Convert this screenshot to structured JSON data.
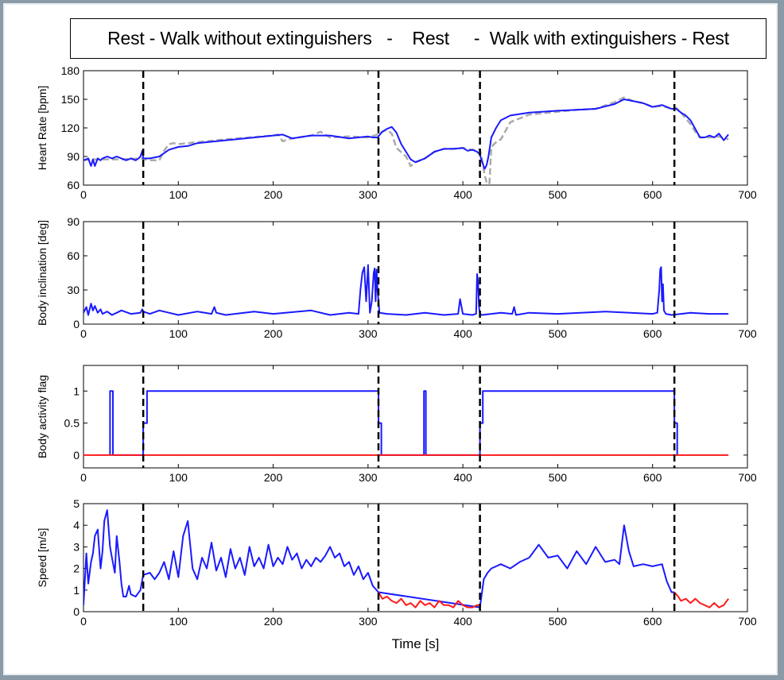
{
  "header": {
    "title": "Rest - Walk without extinguishers   -    Rest     -  Walk with extinguishers - Rest"
  },
  "chart_data": [
    {
      "type": "line",
      "ylabel": "Heart Rate [bpm]",
      "xlim": [
        0,
        700
      ],
      "ylim": [
        60,
        180
      ],
      "xticks": [
        0,
        100,
        200,
        300,
        400,
        500,
        600,
        700
      ],
      "yticks": [
        60,
        90,
        120,
        150,
        180
      ],
      "phase_boundaries": [
        63,
        311,
        418,
        623
      ],
      "series": [
        {
          "color": "#1a1aff",
          "style": "solid",
          "x": [
            0,
            5,
            8,
            10,
            12,
            15,
            18,
            20,
            25,
            30,
            35,
            40,
            45,
            50,
            55,
            58,
            60,
            62,
            63,
            65,
            70,
            80,
            90,
            100,
            110,
            120,
            130,
            150,
            170,
            200,
            210,
            220,
            240,
            260,
            280,
            300,
            305,
            310,
            315,
            320,
            325,
            330,
            335,
            340,
            345,
            350,
            360,
            370,
            380,
            390,
            400,
            405,
            410,
            415,
            418,
            420,
            423,
            425,
            427,
            430,
            435,
            440,
            450,
            470,
            500,
            520,
            540,
            560,
            570,
            580,
            590,
            600,
            610,
            620,
            625,
            630,
            635,
            640,
            645,
            650,
            655,
            660,
            665,
            670,
            675,
            680
          ],
          "values": [
            86,
            88,
            80,
            87,
            80,
            88,
            86,
            88,
            90,
            88,
            90,
            88,
            86,
            88,
            86,
            88,
            90,
            96,
            88,
            88,
            88,
            90,
            97,
            100,
            101,
            104,
            105,
            107,
            109,
            112,
            113,
            109,
            112,
            112,
            109,
            111,
            110,
            110,
            116,
            119,
            121,
            115,
            103,
            95,
            87,
            84,
            88,
            95,
            98,
            98,
            99,
            96,
            97,
            95,
            92,
            85,
            77,
            81,
            90,
            110,
            120,
            128,
            133,
            136,
            138,
            139,
            140,
            145,
            150,
            148,
            146,
            142,
            144,
            140,
            140,
            136,
            133,
            128,
            119,
            110,
            110,
            112,
            110,
            114,
            107,
            113
          ]
        },
        {
          "color": "#aaaaaa",
          "style": "dashed",
          "x": [
            0,
            10,
            20,
            40,
            60,
            70,
            80,
            85,
            90,
            95,
            100,
            120,
            150,
            200,
            205,
            210,
            220,
            240,
            250,
            260,
            280,
            300,
            310,
            315,
            320,
            325,
            330,
            340,
            345,
            350,
            360,
            370,
            380,
            390,
            400,
            410,
            418,
            420,
            423,
            425,
            428,
            430,
            435,
            440,
            450,
            470,
            500,
            520,
            540,
            560,
            570,
            580,
            590,
            600,
            610,
            620,
            625,
            630,
            635,
            640,
            645,
            650,
            655,
            660,
            670,
            680
          ],
          "values": [
            86,
            87,
            87,
            87,
            88,
            86,
            86,
            96,
            103,
            104,
            103,
            105,
            108,
            112,
            113,
            106,
            109,
            112,
            116,
            110,
            111,
            110,
            113,
            116,
            118,
            114,
            99,
            90,
            80,
            84,
            88,
            95,
            98,
            98,
            99,
            97,
            97,
            88,
            70,
            63,
            61,
            100,
            105,
            108,
            126,
            134,
            137,
            139,
            140,
            147,
            152,
            148,
            146,
            142,
            143,
            140,
            141,
            136,
            130,
            124,
            116,
            110,
            110,
            110,
            111,
            108
          ]
        }
      ]
    },
    {
      "type": "line",
      "ylabel": "Body inclination [deg]",
      "xlim": [
        0,
        700
      ],
      "ylim": [
        0,
        90
      ],
      "xticks": [
        0,
        100,
        200,
        300,
        400,
        500,
        600,
        700
      ],
      "yticks": [
        0,
        30,
        60,
        90
      ],
      "phase_boundaries": [
        63,
        311,
        418,
        623
      ],
      "series": [
        {
          "color": "#1a1aff",
          "style": "solid",
          "x": [
            0,
            3,
            5,
            8,
            10,
            12,
            15,
            18,
            20,
            25,
            30,
            35,
            40,
            50,
            60,
            62,
            63,
            70,
            80,
            90,
            100,
            120,
            135,
            138,
            140,
            150,
            180,
            200,
            240,
            260,
            280,
            290,
            292,
            294,
            296,
            298,
            300,
            302,
            304,
            306,
            307,
            308,
            309,
            310,
            312,
            320,
            340,
            360,
            380,
            395,
            397,
            400,
            410,
            414,
            415,
            416,
            417,
            418,
            420,
            440,
            452,
            454,
            456,
            470,
            500,
            550,
            600,
            605,
            607,
            608,
            609,
            610,
            611,
            612,
            614,
            620,
            640,
            660,
            680
          ],
          "values": [
            10,
            15,
            8,
            18,
            12,
            16,
            10,
            13,
            9,
            11,
            8,
            10,
            12,
            9,
            10,
            13,
            11,
            9,
            12,
            10,
            8,
            11,
            9,
            15,
            10,
            8,
            11,
            9,
            12,
            8,
            10,
            9,
            30,
            45,
            50,
            20,
            52,
            10,
            20,
            45,
            49,
            20,
            48,
            30,
            10,
            9,
            8,
            10,
            8,
            9,
            22,
            9,
            8,
            9,
            44,
            38,
            15,
            9,
            8,
            10,
            9,
            15,
            8,
            10,
            9,
            11,
            9,
            10,
            30,
            48,
            50,
            20,
            35,
            12,
            9,
            8,
            10,
            9,
            9
          ]
        }
      ]
    },
    {
      "type": "line",
      "ylabel": "Body activity flag",
      "xlim": [
        0,
        700
      ],
      "ylim": [
        -0.2,
        1.4
      ],
      "xticks": [
        0,
        100,
        200,
        300,
        400,
        500,
        600,
        700
      ],
      "yticks": [
        0,
        0.5,
        1
      ],
      "phase_boundaries": [
        63,
        311,
        418,
        623
      ],
      "series": [
        {
          "color": "#1a1aff",
          "style": "solid",
          "x": [
            28,
            28,
            31,
            31,
            63,
            63,
            67,
            67,
            311,
            311,
            314,
            314,
            359,
            359,
            361,
            361,
            418,
            418,
            421,
            421,
            623,
            623,
            626,
            626
          ],
          "values": [
            0,
            1,
            1,
            0,
            0,
            0.5,
            0.5,
            1,
            1,
            0.5,
            0.5,
            0,
            0,
            1,
            1,
            0,
            0,
            0.5,
            0.5,
            1,
            1,
            0.5,
            0.5,
            0
          ]
        },
        {
          "color": "#ff1a1a",
          "style": "solid",
          "x": [
            0,
            28,
            31,
            63,
            314,
            359,
            361,
            418,
            626,
            680
          ],
          "values": [
            0,
            0,
            0,
            0,
            0,
            0,
            0,
            0,
            0,
            0
          ]
        }
      ]
    },
    {
      "type": "line",
      "ylabel": "Speed [m/s]",
      "xlabel": "Time [s]",
      "xlim": [
        0,
        700
      ],
      "ylim": [
        0,
        5
      ],
      "xticks": [
        0,
        100,
        200,
        300,
        400,
        500,
        600,
        700
      ],
      "yticks": [
        0,
        1,
        2,
        3,
        4,
        5
      ],
      "phase_boundaries": [
        63,
        311,
        418,
        623
      ],
      "series": [
        {
          "color": "#1a1aff",
          "style": "solid",
          "x": [
            0,
            3,
            5,
            8,
            10,
            12,
            15,
            18,
            20,
            22,
            25,
            28,
            30,
            33,
            35,
            38,
            40,
            42,
            45,
            48,
            50,
            55,
            60,
            63,
            70,
            75,
            80,
            85,
            90,
            95,
            100,
            105,
            110,
            115,
            120,
            125,
            130,
            135,
            140,
            145,
            150,
            155,
            160,
            165,
            170,
            175,
            180,
            185,
            190,
            195,
            200,
            205,
            210,
            215,
            220,
            225,
            230,
            235,
            240,
            245,
            250,
            255,
            260,
            265,
            270,
            275,
            280,
            285,
            290,
            295,
            300,
            305,
            311,
            418,
            422,
            426,
            430,
            440,
            450,
            460,
            470,
            480,
            490,
            500,
            510,
            520,
            530,
            540,
            550,
            560,
            565,
            570,
            575,
            580,
            590,
            600,
            610,
            615,
            620,
            623
          ],
          "values": [
            0.3,
            2.7,
            1.3,
            2.3,
            2.7,
            3.5,
            3.8,
            2.0,
            2.8,
            4.2,
            4.7,
            3.0,
            2.5,
            1.8,
            3.5,
            2.3,
            1.3,
            0.7,
            0.7,
            1.2,
            0.8,
            0.7,
            1.0,
            1.7,
            1.8,
            1.5,
            1.8,
            2.3,
            1.5,
            2.8,
            1.6,
            3.5,
            4.2,
            2.0,
            1.5,
            2.5,
            2.0,
            3.2,
            1.9,
            2.5,
            1.6,
            2.9,
            2.0,
            2.5,
            1.7,
            3.0,
            2.1,
            2.5,
            2.0,
            3.1,
            2.1,
            2.5,
            2.2,
            3.0,
            2.4,
            2.7,
            2.0,
            2.4,
            2.1,
            2.5,
            2.3,
            2.6,
            3.0,
            2.5,
            2.7,
            2.1,
            2.3,
            1.7,
            2.1,
            1.5,
            1.8,
            1.2,
            0.9,
            0.2,
            1.5,
            1.8,
            2.0,
            2.2,
            2.0,
            2.3,
            2.5,
            3.1,
            2.5,
            2.6,
            2.0,
            2.8,
            2.2,
            3.0,
            2.3,
            2.4,
            2.2,
            4.0,
            2.8,
            2.1,
            2.2,
            2.1,
            2.2,
            1.4,
            0.9,
            0.9
          ]
        },
        {
          "color": "#ff1a1a",
          "style": "solid",
          "x": [
            311,
            315,
            320,
            325,
            330,
            335,
            340,
            345,
            350,
            355,
            360,
            365,
            370,
            375,
            380,
            385,
            390,
            395,
            400,
            405,
            410,
            415,
            418
          ],
          "values": [
            0.9,
            0.6,
            0.7,
            0.5,
            0.4,
            0.6,
            0.3,
            0.4,
            0.2,
            0.5,
            0.3,
            0.4,
            0.2,
            0.5,
            0.3,
            0.3,
            0.2,
            0.5,
            0.3,
            0.2,
            0.2,
            0.3,
            0.3
          ]
        },
        {
          "color": "#ff1a1a",
          "style": "solid",
          "x": [
            623,
            627,
            630,
            635,
            640,
            645,
            650,
            655,
            660,
            665,
            670,
            675,
            680
          ],
          "values": [
            0.9,
            0.7,
            0.5,
            0.6,
            0.4,
            0.6,
            0.4,
            0.3,
            0.2,
            0.4,
            0.2,
            0.3,
            0.6
          ]
        }
      ]
    }
  ]
}
